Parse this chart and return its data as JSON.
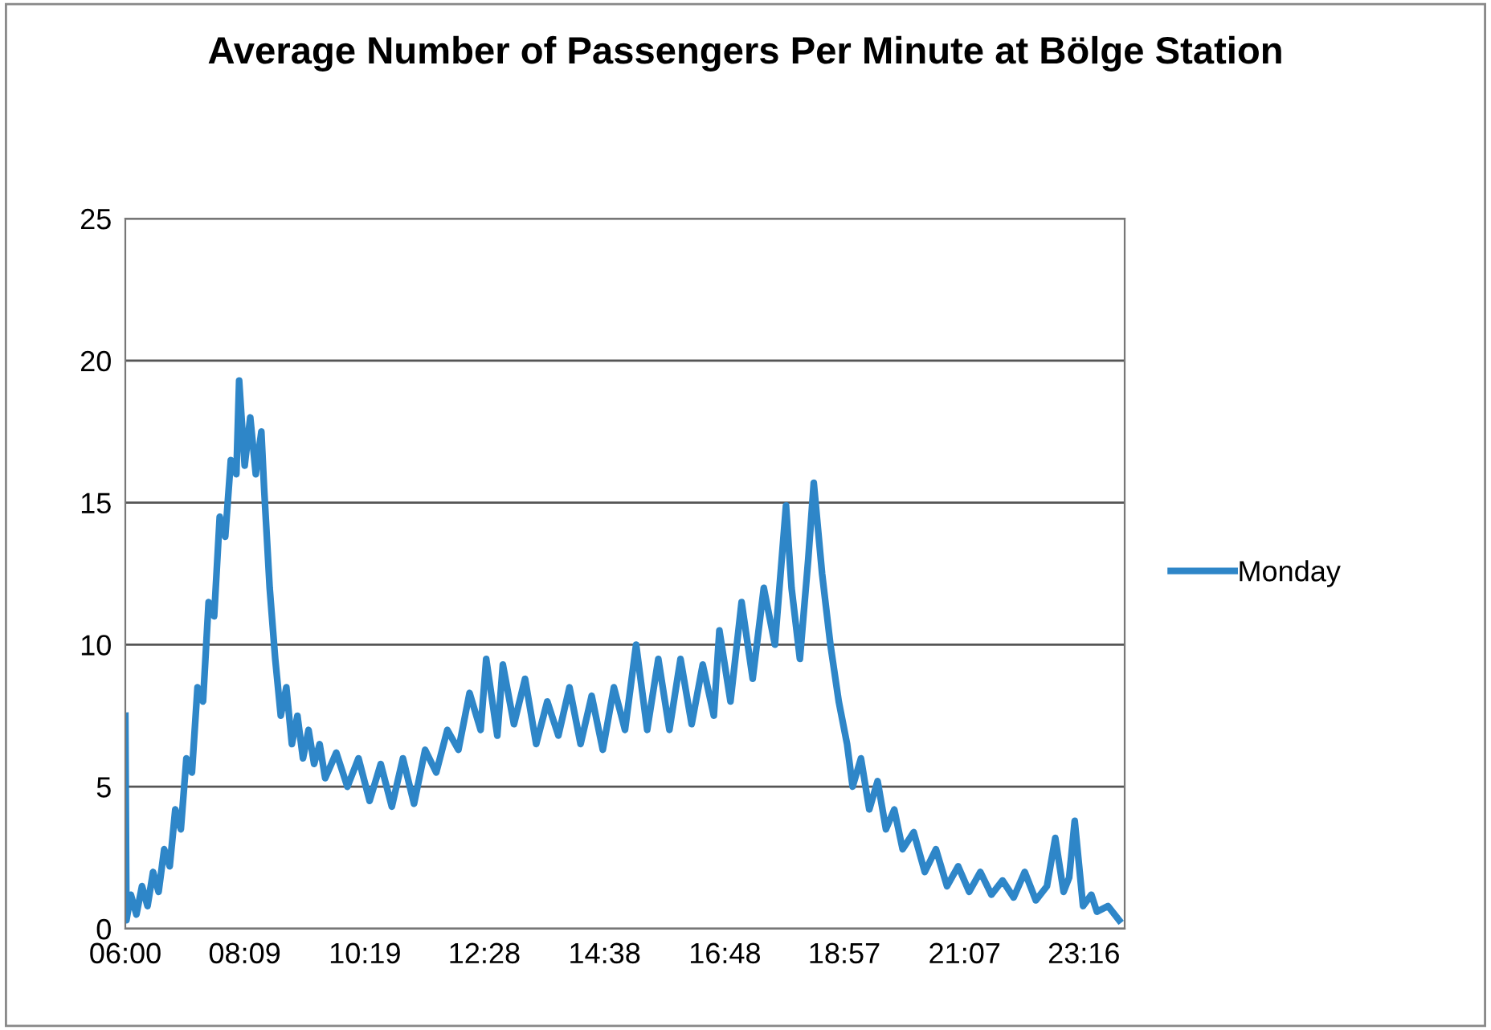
{
  "chart_data": {
    "type": "line",
    "title": "Average Number of Passengers Per Minute at Bölge Station",
    "xlim": [
      6,
      24
    ],
    "xticks": [
      {
        "value": 6,
        "label": "06:00"
      },
      {
        "value": 8.15,
        "label": "08:09"
      },
      {
        "value": 10.3167,
        "label": "10:19"
      },
      {
        "value": 12.4667,
        "label": "12:28"
      },
      {
        "value": 14.6333,
        "label": "14:38"
      },
      {
        "value": 16.8,
        "label": "16:48"
      },
      {
        "value": 18.95,
        "label": "18:57"
      },
      {
        "value": 21.1167,
        "label": "21:07"
      },
      {
        "value": 23.2667,
        "label": "23:16"
      }
    ],
    "ylim": [
      0,
      25
    ],
    "yticks": [
      0,
      5,
      10,
      15,
      20,
      25
    ],
    "grid": "y",
    "legend": "right",
    "marker": "none",
    "line_style": "solid",
    "series": [
      {
        "name": "Monday",
        "color": "#2e86c8",
        "x": [
          6.0,
          6.02,
          6.1,
          6.2,
          6.3,
          6.4,
          6.5,
          6.6,
          6.7,
          6.8,
          6.9,
          7.0,
          7.1,
          7.2,
          7.3,
          7.4,
          7.5,
          7.6,
          7.7,
          7.8,
          7.9,
          8.0,
          8.05,
          8.15,
          8.25,
          8.35,
          8.45,
          8.5,
          8.6,
          8.7,
          8.8,
          8.9,
          9.0,
          9.1,
          9.2,
          9.3,
          9.4,
          9.5,
          9.6,
          9.8,
          10.0,
          10.2,
          10.4,
          10.6,
          10.8,
          11.0,
          11.2,
          11.4,
          11.6,
          11.8,
          12.0,
          12.2,
          12.4,
          12.5,
          12.7,
          12.8,
          13.0,
          13.2,
          13.4,
          13.6,
          13.8,
          14.0,
          14.2,
          14.4,
          14.6,
          14.8,
          15.0,
          15.2,
          15.4,
          15.6,
          15.8,
          16.0,
          16.2,
          16.4,
          16.6,
          16.7,
          16.9,
          17.1,
          17.3,
          17.5,
          17.7,
          17.9,
          18.0,
          18.15,
          18.3,
          18.4,
          18.55,
          18.7,
          18.85,
          19.0,
          19.1,
          19.25,
          19.4,
          19.55,
          19.7,
          19.85,
          20.0,
          20.2,
          20.4,
          20.6,
          20.8,
          21.0,
          21.2,
          21.4,
          21.6,
          21.8,
          22.0,
          22.2,
          22.4,
          22.6,
          22.75,
          22.9,
          23.0,
          23.1,
          23.25,
          23.4,
          23.5,
          23.7,
          23.9
        ],
        "values": [
          7.5,
          0.3,
          1.2,
          0.5,
          1.5,
          0.8,
          2.0,
          1.3,
          2.8,
          2.2,
          4.2,
          3.5,
          6.0,
          5.5,
          8.5,
          8.0,
          11.5,
          11.0,
          14.5,
          13.8,
          16.5,
          16.0,
          19.3,
          16.3,
          18.0,
          16.0,
          17.5,
          15.5,
          12.0,
          9.5,
          7.5,
          8.5,
          6.5,
          7.5,
          6.0,
          7.0,
          5.8,
          6.5,
          5.3,
          6.2,
          5.0,
          6.0,
          4.5,
          5.8,
          4.3,
          6.0,
          4.4,
          6.3,
          5.5,
          7.0,
          6.3,
          8.3,
          7.0,
          9.5,
          6.8,
          9.3,
          7.2,
          8.8,
          6.5,
          8.0,
          6.8,
          8.5,
          6.5,
          8.2,
          6.3,
          8.5,
          7.0,
          10.0,
          7.0,
          9.5,
          7.0,
          9.5,
          7.2,
          9.3,
          7.5,
          10.5,
          8.0,
          11.5,
          8.8,
          12.0,
          10.0,
          14.9,
          12.0,
          9.5,
          13.0,
          15.7,
          12.5,
          10.0,
          8.0,
          6.5,
          5.0,
          6.0,
          4.2,
          5.2,
          3.5,
          4.2,
          2.8,
          3.4,
          2.0,
          2.8,
          1.5,
          2.2,
          1.3,
          2.0,
          1.2,
          1.7,
          1.1,
          2.0,
          1.0,
          1.5,
          3.2,
          1.3,
          1.8,
          3.8,
          0.8,
          1.2,
          0.6,
          0.8,
          0.3
        ]
      }
    ]
  }
}
